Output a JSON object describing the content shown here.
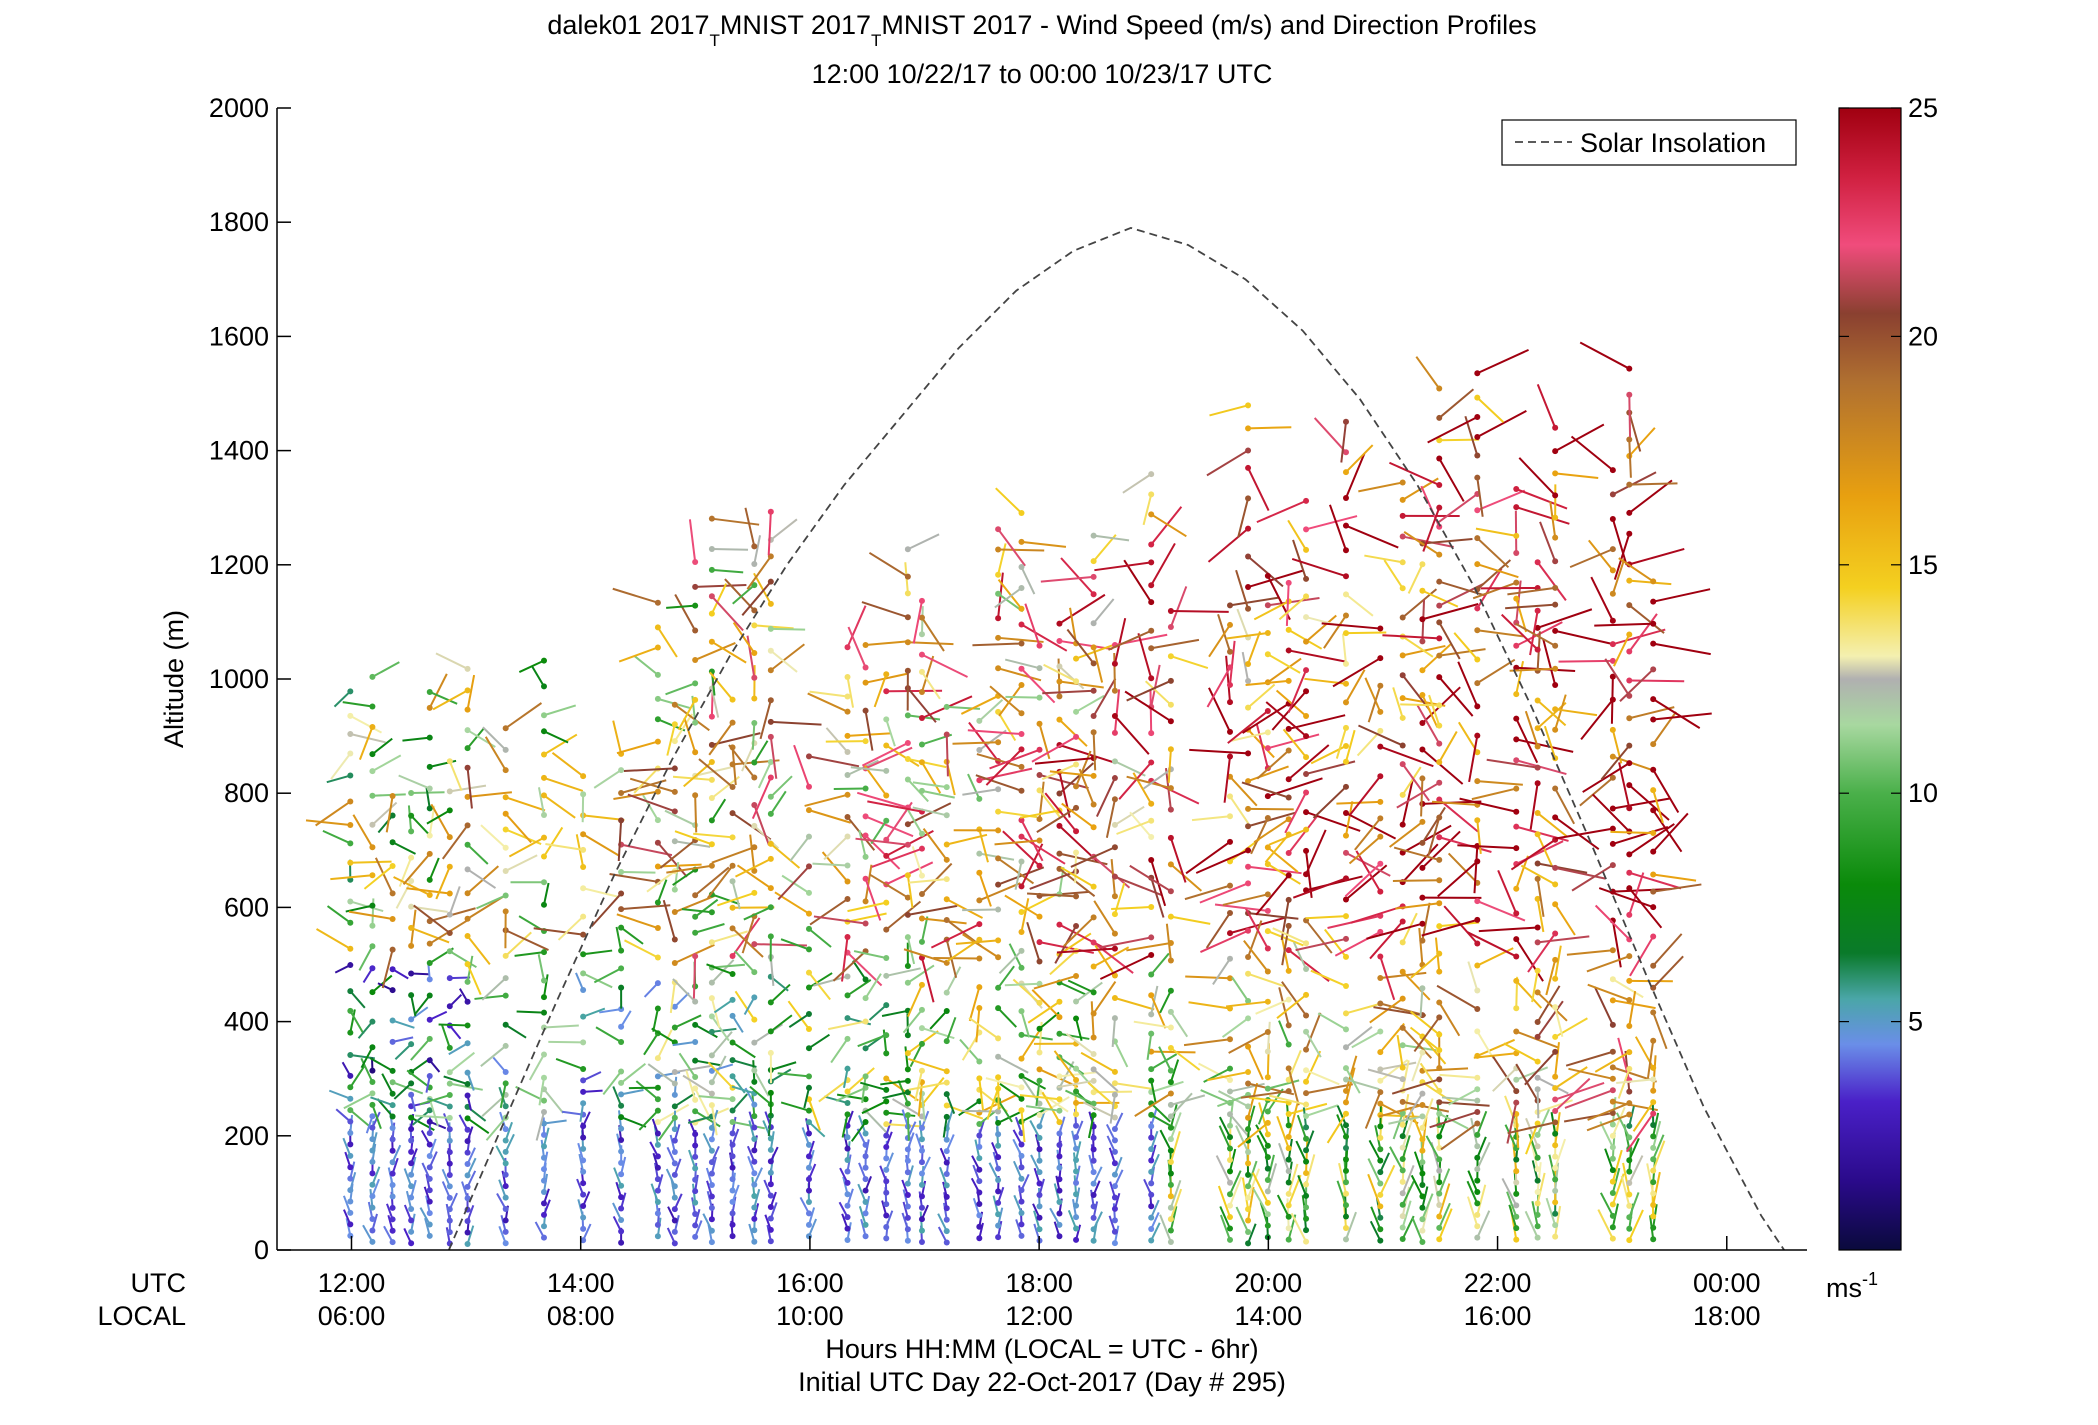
{
  "chart_data": {
    "type": "scatter",
    "title": {
      "site": "dalek01 2017",
      "sub1": "T",
      "mid": "MNIST 2017",
      "sub2": "T",
      "rest": "MNIST 2017 - Wind Speed (m/s) and Direction Profiles",
      "line2": "12:00 10/22/17 to 00:00 10/23/17  UTC"
    },
    "ylabel": "Altitude (m)",
    "xlabel": "Hours HH:MM  (LOCAL = UTC - 6hr)",
    "xlabel2": "Initial UTC Day 22-Oct-2017 (Day # 295)",
    "ylim": [
      0,
      2000
    ],
    "xlim_hours_utc": [
      11.35,
      24.7
    ],
    "y_ticks": [
      0,
      200,
      400,
      600,
      800,
      1000,
      1200,
      1400,
      1600,
      1800,
      2000
    ],
    "x_ticks": [
      {
        "hour": 12,
        "utc": "12:00",
        "local": "06:00"
      },
      {
        "hour": 14,
        "utc": "14:00",
        "local": "08:00"
      },
      {
        "hour": 16,
        "utc": "16:00",
        "local": "10:00"
      },
      {
        "hour": 18,
        "utc": "18:00",
        "local": "12:00"
      },
      {
        "hour": 20,
        "utc": "20:00",
        "local": "14:00"
      },
      {
        "hour": 22,
        "utc": "22:00",
        "local": "16:00"
      },
      {
        "hour": 24,
        "utc": "00:00",
        "local": "18:00"
      }
    ],
    "row_labels": {
      "utc": "UTC",
      "local": "LOCAL"
    },
    "legend": {
      "label": "Solar Insolation",
      "position": "top-right"
    },
    "colorbar": {
      "min": 0,
      "max": 25,
      "ticks": [
        5,
        10,
        15,
        20,
        25
      ],
      "unit": "ms",
      "unit_exp": "-1"
    },
    "solar_insolation": {
      "x": [
        12.85,
        13.3,
        13.8,
        14.3,
        14.8,
        15.3,
        15.8,
        16.3,
        16.8,
        17.3,
        17.8,
        18.3,
        18.8,
        19.3,
        19.8,
        20.3,
        20.8,
        21.3,
        21.8,
        22.3,
        22.8,
        23.3,
        23.8,
        24.3,
        24.5
      ],
      "y": [
        0,
        210,
        440,
        660,
        860,
        1040,
        1200,
        1340,
        1460,
        1580,
        1680,
        1750,
        1790,
        1760,
        1700,
        1610,
        1490,
        1340,
        1160,
        950,
        720,
        480,
        250,
        60,
        0
      ]
    },
    "profiles": {
      "time_start": 12.0,
      "time_end": 23.7,
      "time_step": 0.1667,
      "altitude_step_m": 20,
      "barb_length_m": 14
    }
  }
}
